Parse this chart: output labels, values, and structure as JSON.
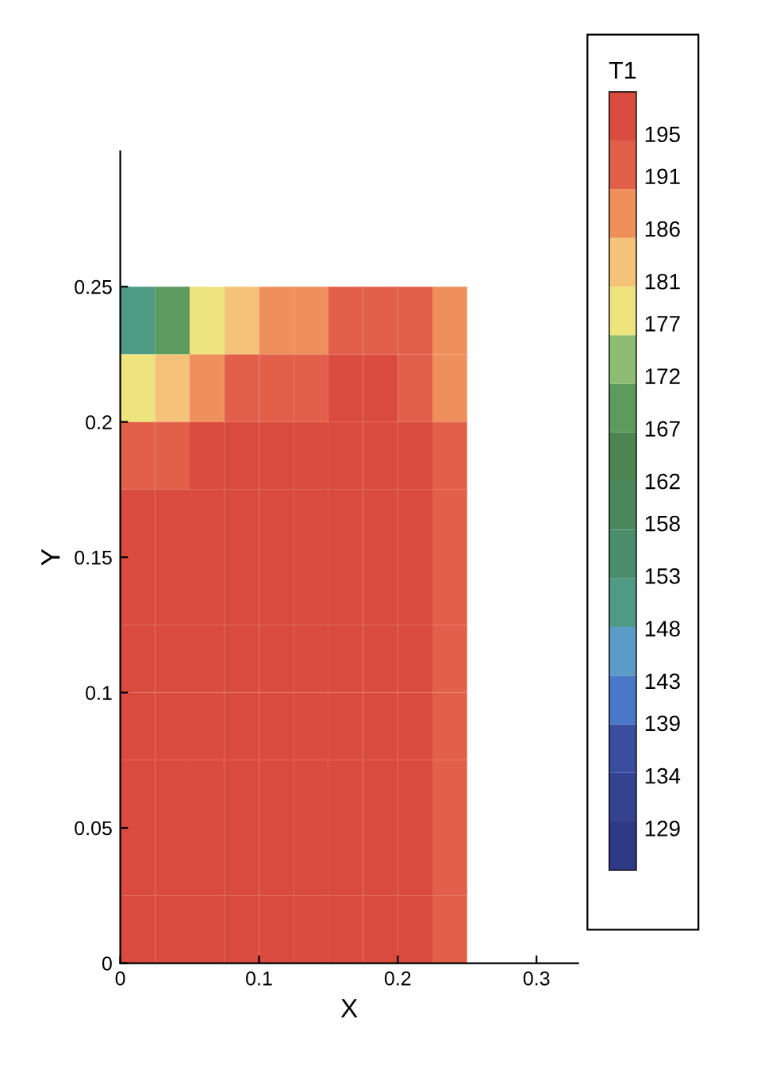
{
  "chart_data": {
    "type": "heatmap",
    "xlabel": "X",
    "ylabel": "Y",
    "clabel": "T1",
    "x": [
      0.0125,
      0.0375,
      0.0625,
      0.0875,
      0.1125,
      0.1375,
      0.1625,
      0.1875,
      0.2125,
      0.2375
    ],
    "y": [
      0.2375,
      0.2125,
      0.1875,
      0.1625,
      0.1375,
      0.1125,
      0.0875,
      0.0625,
      0.0375,
      0.0125
    ],
    "cells": [
      [
        150,
        170,
        178,
        184,
        187,
        189,
        190,
        191,
        190,
        186
      ],
      [
        176,
        184,
        188,
        192,
        193,
        194,
        196,
        196,
        194,
        189
      ],
      [
        193,
        194,
        195,
        196,
        196,
        197,
        197,
        197,
        196,
        191
      ],
      [
        196,
        196,
        196,
        196,
        196,
        197,
        197,
        197,
        196,
        193
      ],
      [
        196,
        196,
        196,
        196,
        196,
        196,
        196,
        196,
        196,
        193
      ],
      [
        196,
        196,
        196,
        196,
        196,
        196,
        196,
        196,
        196,
        193
      ],
      [
        196,
        196,
        196,
        196,
        196,
        196,
        196,
        196,
        196,
        193
      ],
      [
        196,
        196,
        196,
        196,
        196,
        196,
        196,
        196,
        196,
        193
      ],
      [
        196,
        196,
        196,
        196,
        196,
        196,
        196,
        196,
        196,
        193
      ],
      [
        196,
        196,
        196,
        196,
        196,
        196,
        196,
        196,
        196,
        193
      ]
    ],
    "colors": [
      "#2f3a86",
      "#34428f",
      "#3a4ea0",
      "#4a78c8",
      "#5b9bc6",
      "#4f9a84",
      "#4a8d6c",
      "#4a875c",
      "#4b8552",
      "#5c9a5e",
      "#8dbd72",
      "#eee47e",
      "#f5c27a",
      "#ef8f5c",
      "#e2604a",
      "#d94b3e"
    ],
    "clim": [
      125,
      199
    ],
    "cticks": [
      129,
      134,
      139,
      143,
      148,
      153,
      158,
      162,
      167,
      172,
      177,
      181,
      186,
      191,
      195
    ],
    "xlim": [
      0,
      0.33
    ],
    "ylim": [
      0,
      0.3
    ],
    "xticks": [
      0,
      0.1,
      0.2,
      0.3
    ],
    "yticks": [
      0,
      0.05,
      0.1,
      0.15,
      0.2,
      0.25
    ],
    "grid": false
  }
}
